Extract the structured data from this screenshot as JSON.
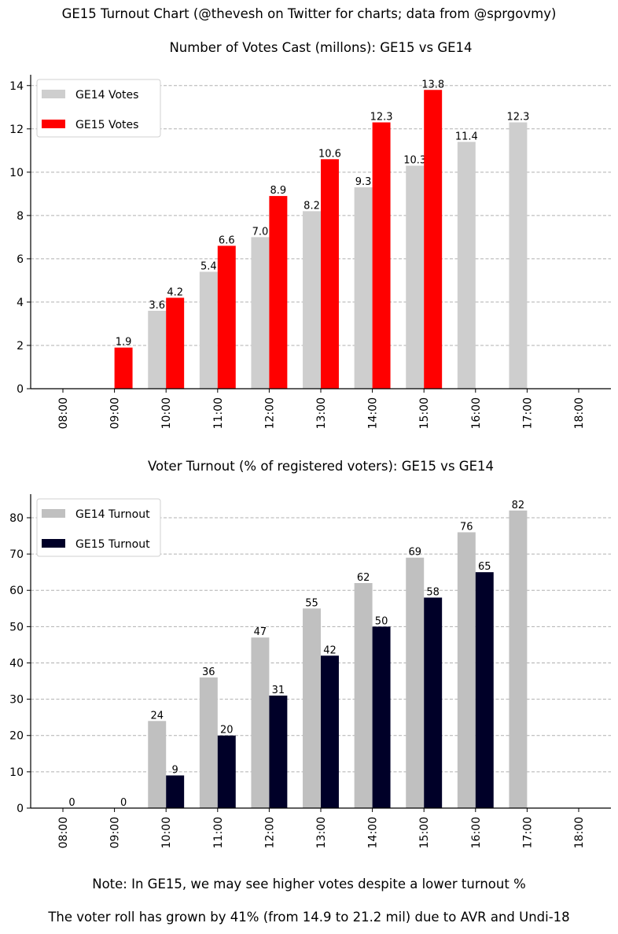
{
  "figure": {
    "title": "GE15 Turnout Chart (@thevesh on Twitter for charts; data from @sprgovmy)",
    "note_line1": "Note: In GE15, we may see higher votes despite a lower turnout %",
    "note_line2": "The voter roll has grown by 41% (from 14.9 to 21.2 mil) due to AVR and Undi-18"
  },
  "chart_data": [
    {
      "type": "bar",
      "title": "Number of Votes Cast (millons): GE15 vs GE14",
      "categories": [
        "08:00",
        "09:00",
        "10:00",
        "11:00",
        "12:00",
        "13:00",
        "14:00",
        "15:00",
        "16:00",
        "17:00",
        "18:00"
      ],
      "ylim": [
        0,
        14.5
      ],
      "yticks": [
        0,
        2,
        4,
        6,
        8,
        10,
        12,
        14
      ],
      "grid": "y dashed",
      "legend_position": "top-left",
      "series": [
        {
          "name": "GE14 Votes",
          "color": "#cecece",
          "values": [
            null,
            null,
            3.6,
            5.4,
            7.0,
            8.2,
            9.3,
            10.3,
            11.4,
            12.3,
            null
          ],
          "labels": [
            null,
            null,
            "3.6",
            "5.4",
            "7.0",
            "8.2",
            "9.3",
            "10.3",
            "11.4",
            "12.3",
            null
          ]
        },
        {
          "name": "GE15 Votes",
          "color": "#ff0000",
          "values": [
            null,
            1.9,
            4.2,
            6.6,
            8.9,
            10.6,
            12.3,
            13.8,
            null,
            null,
            null
          ],
          "labels": [
            null,
            "1.9",
            "4.2",
            "6.6",
            "8.9",
            "10.6",
            "12.3",
            "13.8",
            null,
            null,
            null
          ]
        }
      ]
    },
    {
      "type": "bar",
      "title": "Voter Turnout (% of registered voters): GE15 vs GE14",
      "categories": [
        "08:00",
        "09:00",
        "10:00",
        "11:00",
        "12:00",
        "13:00",
        "14:00",
        "15:00",
        "16:00",
        "17:00",
        "18:00"
      ],
      "ylim": [
        0,
        86.5
      ],
      "yticks": [
        0,
        10,
        20,
        30,
        40,
        50,
        60,
        70,
        80
      ],
      "grid": "y dashed",
      "legend_position": "top-left",
      "series": [
        {
          "name": "GE14 Turnout",
          "color": "#c0c0c0",
          "values": [
            null,
            null,
            24,
            36,
            47,
            55,
            62,
            69,
            76,
            82,
            null
          ],
          "labels": [
            null,
            null,
            "24",
            "36",
            "47",
            "55",
            "62",
            "69",
            "76",
            "82",
            null
          ]
        },
        {
          "name": "GE15 Turnout",
          "color": "#000028",
          "values": [
            0,
            0,
            9,
            20,
            31,
            42,
            50,
            58,
            65,
            null,
            null
          ],
          "labels": [
            "0",
            "0",
            "9",
            "20",
            "31",
            "42",
            "50",
            "58",
            "65",
            null,
            null
          ]
        }
      ]
    }
  ]
}
